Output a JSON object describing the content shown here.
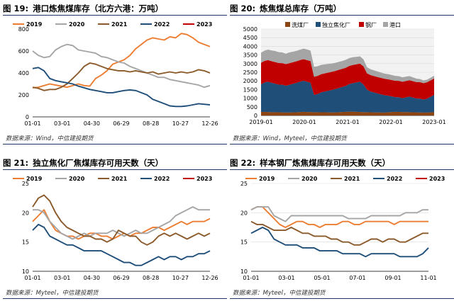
{
  "colors": {
    "s2019": "#ed7d31",
    "s2020": "#a5a5a5",
    "s2021": "#8b5a2b",
    "s2022": "#1f4e79",
    "s2023": "#c00000",
    "washing": "#8b4513",
    "coking": "#1f4e79",
    "steel": "#c00000",
    "port": "#a5a5a5"
  },
  "chart_data": [
    {
      "type": "line",
      "title_prefix": "图 19:",
      "title": "港口炼焦煤库存（北方六港：万吨）",
      "source": "数据来源：Wind，中信建投期货",
      "x_ticks": [
        "01-01",
        "03-01",
        "04-30",
        "06-29",
        "08-28",
        "10-27",
        "12-26"
      ],
      "ylim": [
        0,
        800
      ],
      "y_ticks": [
        0,
        200,
        400,
        600,
        800
      ],
      "legend": "top",
      "series": [
        {
          "name": "2019",
          "color_key": "s2019",
          "values": [
            265,
            270,
            285,
            300,
            290,
            280,
            270,
            285,
            300,
            285,
            280,
            350,
            380,
            420,
            480,
            500,
            520,
            560,
            620,
            660,
            700,
            720,
            710,
            700,
            730,
            720,
            760,
            750,
            720,
            680,
            660,
            640
          ]
        },
        {
          "name": "2020",
          "color_key": "s2020",
          "values": [
            600,
            560,
            540,
            550,
            610,
            640,
            660,
            650,
            610,
            600,
            590,
            580,
            550,
            540,
            520,
            500,
            490,
            460,
            440,
            420,
            400,
            380,
            360,
            360,
            340,
            330,
            320,
            310,
            300,
            290,
            270,
            285
          ]
        },
        {
          "name": "2021",
          "color_key": "s2021",
          "values": [
            270,
            260,
            240,
            250,
            250,
            270,
            300,
            350,
            400,
            460,
            490,
            480,
            460,
            440,
            430,
            420,
            420,
            410,
            420,
            410,
            400,
            410,
            390,
            400,
            410,
            400,
            410,
            400,
            410,
            430,
            420,
            400
          ]
        },
        {
          "name": "2022",
          "color_key": "s2022",
          "values": [
            440,
            450,
            420,
            350,
            330,
            320,
            310,
            300,
            280,
            265,
            250,
            240,
            230,
            220,
            220,
            230,
            240,
            245,
            240,
            220,
            200,
            160,
            140,
            120,
            100,
            95,
            95,
            100,
            110,
            120,
            115,
            110
          ]
        },
        {
          "name": "2023",
          "color_key": "s2023",
          "values": []
        }
      ]
    },
    {
      "type": "area",
      "title_prefix": "图 20:",
      "title": "炼焦煤总库存（万吨）",
      "source": "数据来源：Wind，Myteel，中信建投期货",
      "x_ticks": [
        "2019-01",
        "2020-01",
        "2021-01",
        "2022-01",
        "2023-01"
      ],
      "ylim": [
        0,
        5000
      ],
      "y_ticks": [
        0,
        500,
        1000,
        1500,
        2000,
        2500,
        3000,
        3500,
        4000,
        4500,
        5000
      ],
      "legend": "top",
      "stack_order": [
        "washing",
        "coking",
        "steel",
        "port"
      ],
      "series": [
        {
          "name": "洗煤厂",
          "color_key": "washing",
          "values": [
            200,
            210,
            200,
            190,
            190,
            185,
            180,
            170,
            175,
            180,
            185,
            200,
            210,
            200,
            200,
            190,
            190,
            185,
            185,
            180,
            175,
            175,
            190,
            200,
            210,
            220,
            220,
            210,
            200,
            195,
            190,
            185,
            180,
            175,
            170,
            170,
            190,
            200,
            210,
            205,
            200,
            195,
            190,
            185,
            180,
            175,
            170,
            170,
            180,
            190
          ]
        },
        {
          "name": "独立焦化厂",
          "color_key": "coking",
          "values": [
            1600,
            1700,
            1750,
            1700,
            1650,
            1600,
            1600,
            1550,
            1600,
            1650,
            1700,
            1750,
            1800,
            1750,
            1700,
            1000,
            1050,
            1150,
            1200,
            1250,
            1300,
            1350,
            1400,
            1450,
            1500,
            1600,
            1650,
            1700,
            1750,
            1600,
            1300,
            1200,
            1150,
            1100,
            1050,
            1000,
            950,
            900,
            850,
            850,
            800,
            850,
            900,
            850,
            800,
            800,
            750,
            800,
            900,
            1000
          ]
        },
        {
          "name": "钢厂",
          "color_key": "steel",
          "values": [
            1250,
            1250,
            1250,
            1250,
            1250,
            1250,
            1250,
            1250,
            1250,
            1250,
            1250,
            1250,
            1250,
            1250,
            1250,
            1050,
            1050,
            1050,
            1050,
            1050,
            1050,
            1050,
            1050,
            1050,
            1050,
            1050,
            1050,
            1050,
            1050,
            1050,
            950,
            950,
            950,
            950,
            950,
            950,
            950,
            950,
            950,
            950,
            950,
            950,
            950,
            950,
            950,
            950,
            950,
            950,
            950,
            950
          ]
        },
        {
          "name": "港口",
          "color_key": "port",
          "values": [
            580,
            590,
            610,
            620,
            640,
            630,
            620,
            600,
            620,
            610,
            600,
            600,
            610,
            620,
            600,
            580,
            560,
            540,
            520,
            500,
            480,
            470,
            460,
            450,
            460,
            450,
            450,
            430,
            420,
            400,
            350,
            340,
            330,
            320,
            310,
            300,
            300,
            290,
            280,
            270,
            260,
            250,
            240,
            220,
            200,
            180,
            160,
            150,
            150,
            160
          ]
        }
      ]
    },
    {
      "type": "line",
      "title_prefix": "图 21:",
      "title": "独立焦化厂焦煤库存可用天数（天）",
      "source": "数据来源：Myteel，中信建投期货",
      "x_ticks": [
        "01-01",
        "03-01",
        "04-30",
        "06-29",
        "08-28",
        "10-27",
        "12-26"
      ],
      "ylim": [
        10,
        25
      ],
      "y_ticks": [
        10,
        15,
        20,
        25
      ],
      "legend": "top",
      "series": [
        {
          "name": "2019",
          "color_key": "s2019",
          "values": [
            18.5,
            19.5,
            20.5,
            18.5,
            17.0,
            16.5,
            16.0,
            16.0,
            15.5,
            16.0,
            16.5,
            16.5,
            16.0,
            16.0,
            15.5,
            16.0,
            16.5,
            16.0,
            16.5,
            16.5,
            17.0,
            17.5,
            17.5,
            17.0,
            17.5,
            18.0,
            18.5,
            18.0,
            18.5,
            18.5,
            18.5,
            19.0
          ]
        },
        {
          "name": "2020",
          "color_key": "s2020",
          "values": [
            20.5,
            20.5,
            20.0,
            18.5,
            17.5,
            16.5,
            16.0,
            15.5,
            16.0,
            16.5,
            16.0,
            16.5,
            16.5,
            16.5,
            17.0,
            16.5,
            16.0,
            16.5,
            17.0,
            16.5,
            16.5,
            17.0,
            17.5,
            18.0,
            18.5,
            19.5,
            20.0,
            20.5,
            21.0,
            20.5,
            20.5,
            20.5
          ]
        },
        {
          "name": "2021",
          "color_key": "s2021",
          "values": [
            21.0,
            22.5,
            23.0,
            22.0,
            20.0,
            18.5,
            17.5,
            17.0,
            16.5,
            16.0,
            16.0,
            15.5,
            15.5,
            15.0,
            15.5,
            17.0,
            16.5,
            16.0,
            16.0,
            15.0,
            14.5,
            15.0,
            16.0,
            16.5,
            16.0,
            16.5,
            16.0,
            15.5,
            16.0,
            16.5,
            16.0,
            16.5
          ]
        },
        {
          "name": "2022",
          "color_key": "s2022",
          "values": [
            17.0,
            18.0,
            17.5,
            16.0,
            15.5,
            15.0,
            14.5,
            14.5,
            14.0,
            13.5,
            13.5,
            13.5,
            13.5,
            13.0,
            12.5,
            12.0,
            11.5,
            11.5,
            11.0,
            11.0,
            11.5,
            12.0,
            12.5,
            12.0,
            12.5,
            12.5,
            12.0,
            12.5,
            12.5,
            13.0,
            13.0,
            13.5
          ]
        },
        {
          "name": "2023",
          "color_key": "s2023",
          "values": []
        }
      ]
    },
    {
      "type": "line",
      "title_prefix": "图 22:",
      "title": "样本钢厂炼焦煤库存可用天数（天）",
      "source": "数据来源：Myteel，中信建投期货",
      "x_ticks": [
        "01-01",
        "03-01",
        "05-01",
        "07-01",
        "09-01",
        "11-01"
      ],
      "ylim": [
        10,
        25
      ],
      "y_ticks": [
        10,
        15,
        20,
        25
      ],
      "legend": "top",
      "series": [
        {
          "name": "2019",
          "color_key": "s2019",
          "values": [
            20.5,
            21.0,
            21.0,
            20.0,
            19.0,
            18.0,
            17.5,
            18.0,
            18.5,
            18.5,
            18.0,
            18.0,
            17.5,
            18.0,
            18.0,
            18.0,
            18.5,
            18.5,
            18.0,
            18.0,
            18.5,
            18.5,
            18.5,
            18.5,
            18.5,
            18.0,
            18.5,
            18.5,
            18.5,
            18.5,
            18.5,
            18.5
          ]
        },
        {
          "name": "2020",
          "color_key": "s2020",
          "values": [
            20.5,
            21.0,
            21.0,
            21.0,
            19.5,
            19.0,
            18.5,
            19.5,
            19.5,
            19.5,
            19.5,
            19.5,
            19.5,
            19.5,
            19.5,
            19.5,
            19.5,
            19.0,
            19.0,
            19.0,
            19.0,
            19.5,
            19.5,
            19.5,
            19.5,
            19.5,
            19.5,
            20.0,
            20.0,
            20.0,
            20.5,
            20.5
          ]
        },
        {
          "name": "2021",
          "color_key": "s2021",
          "values": [
            18.5,
            18.0,
            18.0,
            17.5,
            17.0,
            17.0,
            17.0,
            17.5,
            17.0,
            16.5,
            16.5,
            16.0,
            16.0,
            16.0,
            15.5,
            15.5,
            15.0,
            15.0,
            14.5,
            14.5,
            15.0,
            15.5,
            15.5,
            15.0,
            15.5,
            15.5,
            15.0,
            15.0,
            15.5,
            16.0,
            16.5,
            16.5
          ]
        },
        {
          "name": "2022",
          "color_key": "s2022",
          "values": [
            16.5,
            17.0,
            17.5,
            17.0,
            15.5,
            15.0,
            14.5,
            14.5,
            14.5,
            14.0,
            14.0,
            14.0,
            13.5,
            13.5,
            13.5,
            13.5,
            13.0,
            13.0,
            13.0,
            13.0,
            12.5,
            13.0,
            13.0,
            13.0,
            13.0,
            13.0,
            12.5,
            12.5,
            12.5,
            12.5,
            13.0,
            14.0
          ]
        },
        {
          "name": "2023",
          "color_key": "s2023",
          "values": []
        }
      ]
    }
  ]
}
